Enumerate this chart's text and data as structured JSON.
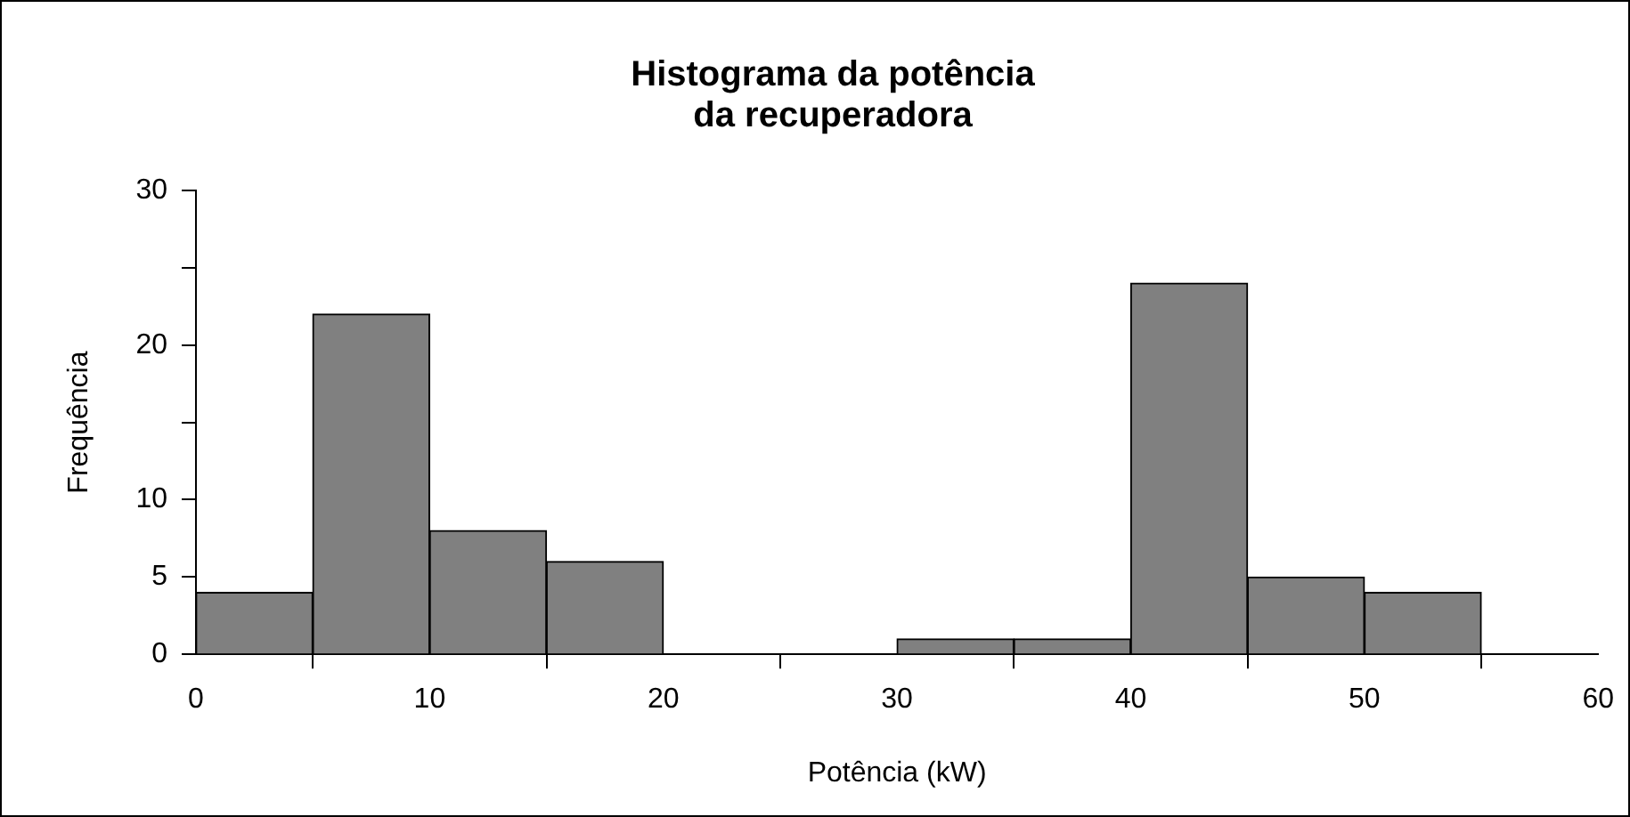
{
  "chart_data": {
    "type": "histogram",
    "title": "Histograma da potência\nda recuperadora",
    "xlabel": "Potência (kW)",
    "ylabel": "Frequência",
    "bins": [
      0,
      5,
      10,
      15,
      20,
      25,
      30,
      35,
      40,
      45,
      50,
      55
    ],
    "values": [
      4,
      22,
      8,
      6,
      0,
      0,
      1,
      1,
      24,
      5,
      4
    ],
    "color": "#808080",
    "xlim": [
      0,
      60
    ],
    "xticks": [
      0,
      10,
      20,
      30,
      40,
      50,
      60
    ],
    "ylim": [
      0,
      30
    ],
    "yticks": [
      0,
      5,
      10,
      {
        "value": 15,
        "label": null
      },
      20,
      {
        "value": 25,
        "label": null
      },
      30
    ],
    "grid": false,
    "legend": false
  }
}
